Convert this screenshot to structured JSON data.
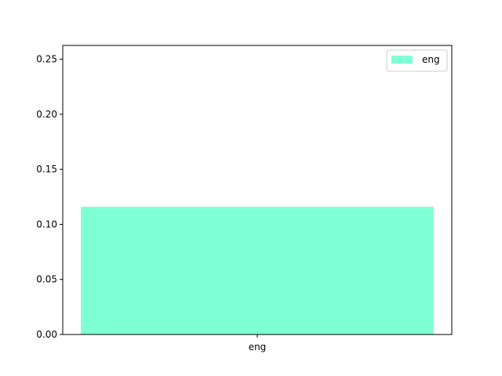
{
  "chart_data": {
    "type": "bar",
    "title": "",
    "xlabel": "",
    "ylabel": "",
    "categories": [
      "eng"
    ],
    "series": [
      {
        "name": "eng",
        "values": [
          0.116
        ],
        "color": "#7fffd4"
      }
    ],
    "ylim": [
      0,
      0.2625
    ],
    "yticks": [
      0.0,
      0.05,
      0.1,
      0.15,
      0.2,
      0.25
    ],
    "ytick_labels": [
      "0.00",
      "0.05",
      "0.10",
      "0.15",
      "0.20",
      "0.25"
    ],
    "legend": {
      "position": "upper-right",
      "entries": [
        "eng"
      ]
    },
    "grid": false
  }
}
